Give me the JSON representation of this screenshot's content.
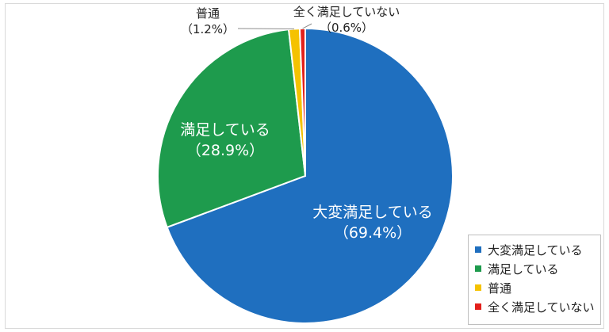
{
  "chart_data": {
    "type": "pie",
    "slices": [
      {
        "label": "大変満足している",
        "value": 69.4,
        "value_label": "（69.4%）",
        "color": "#1f6fbf"
      },
      {
        "label": "満足している",
        "value": 28.9,
        "value_label": "（28.9%）",
        "color": "#1e9b4d"
      },
      {
        "label": "普通",
        "value": 1.2,
        "value_label": "（1.2%）",
        "color": "#f5c200"
      },
      {
        "label": "全く満足していない",
        "value": 0.6,
        "value_label": "（0.6%）",
        "color": "#e3201b"
      }
    ],
    "legend_position": "bottom-right",
    "start": "top, clockwise"
  }
}
